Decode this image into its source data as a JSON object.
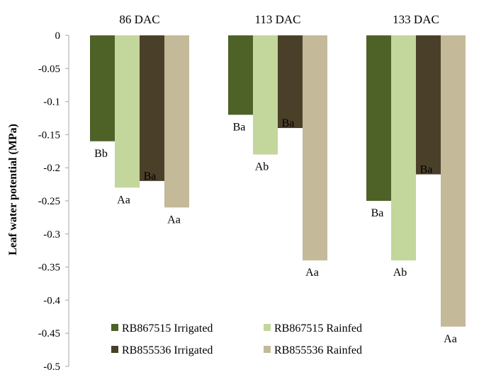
{
  "chart_data": {
    "type": "bar",
    "title": "",
    "xlabel": "",
    "ylabel": "Leaf water potential (MPa)",
    "ylim": [
      -0.5,
      0
    ],
    "yticks": [
      "0",
      "-0.05",
      "-0.1",
      "-0.15",
      "-0.2",
      "-0.25",
      "-0.3",
      "-0.35",
      "-0.4",
      "-0.45",
      "-0.5"
    ],
    "categories": [
      "86 DAC",
      "113 DAC",
      "133 DAC"
    ],
    "grid": false,
    "legend_position": "bottom-inside",
    "series": [
      {
        "name": "RB867515 Irrigated",
        "color": "#4e6228",
        "values": [
          -0.16,
          -0.12,
          -0.25
        ],
        "labels": [
          "Bb",
          "Ba",
          "Ba"
        ]
      },
      {
        "name": "RB867515 Rainfed",
        "color": "#c3d69b",
        "values": [
          -0.23,
          -0.18,
          -0.34
        ],
        "labels": [
          "Aa",
          "Ab",
          "Ab"
        ]
      },
      {
        "name": "RB855536 Irrigated",
        "color": "#4a4029",
        "values": [
          -0.22,
          -0.14,
          -0.21
        ],
        "labels": [
          "Ba",
          "Ba",
          "Ba"
        ]
      },
      {
        "name": "RB855536 Rainfed",
        "color": "#c4b998",
        "values": [
          -0.26,
          -0.34,
          -0.44
        ],
        "labels": [
          "Aa",
          "Aa",
          "Aa"
        ]
      }
    ]
  }
}
